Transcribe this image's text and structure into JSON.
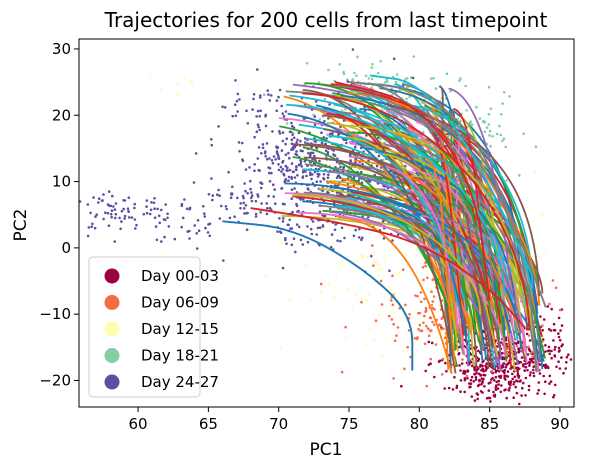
{
  "chart_data": {
    "type": "scatter",
    "title": "Trajectories for 200 cells from last timepoint",
    "xlabel": "PC1",
    "ylabel": "PC2",
    "xlim": [
      55.8,
      91.0
    ],
    "ylim": [
      -24.0,
      31.5
    ],
    "xticks": [
      60,
      65,
      70,
      75,
      80,
      85,
      90
    ],
    "yticks": [
      -20,
      -10,
      0,
      10,
      20,
      30
    ],
    "grid": false,
    "legend_position": "lower-left",
    "series": [
      {
        "name": "Day 00-03",
        "color": "#9e0142",
        "center": [
          85.5,
          -17.0
        ],
        "spread": [
          2.0,
          2.5
        ],
        "count": 550,
        "anchors": [
          [
            86.5,
            -19
          ],
          [
            87.5,
            -17
          ],
          [
            88.5,
            -15
          ],
          [
            85,
            -20
          ],
          [
            84,
            -19
          ],
          [
            88.5,
            -12
          ]
        ]
      },
      {
        "name": "Day 06-09",
        "color": "#f46d43",
        "center": [
          83.0,
          -10.0
        ],
        "spread": [
          3.0,
          5.0
        ],
        "count": 260,
        "anchors": [
          [
            82,
            -8
          ],
          [
            84,
            -12
          ],
          [
            85.5,
            -16
          ],
          [
            79.5,
            -11
          ],
          [
            81,
            -14
          ],
          [
            83,
            -5
          ]
        ]
      },
      {
        "name": "Day 12-15",
        "color": "#fdfdab",
        "center": [
          80.0,
          0.0
        ],
        "spread": [
          4.5,
          7.0
        ],
        "count": 140,
        "anchors": [
          [
            78,
            -2
          ],
          [
            80,
            3
          ],
          [
            76,
            -7
          ],
          [
            83,
            -9
          ],
          [
            77.5,
            -14.5
          ],
          [
            63,
            24
          ]
        ]
      },
      {
        "name": "Day 18-21",
        "color": "#80cfa5",
        "center": [
          79.5,
          18.0
        ],
        "spread": [
          3.5,
          4.0
        ],
        "count": 360,
        "anchors": [
          [
            78,
            22
          ],
          [
            80.5,
            21
          ],
          [
            82,
            18
          ],
          [
            75,
            25
          ],
          [
            83,
            16
          ],
          [
            77,
            24
          ]
        ]
      },
      {
        "name": "Day 24-27",
        "color": "#5e4fa2",
        "center": [
          74.0,
          12.0
        ],
        "spread": [
          3.5,
          5.0
        ],
        "count": 950,
        "anchors": [
          [
            73,
            15
          ],
          [
            71,
            13
          ],
          [
            74,
            9
          ],
          [
            67,
            7
          ],
          [
            63,
            4
          ],
          [
            60,
            6
          ],
          [
            58,
            5
          ],
          [
            72,
            3
          ],
          [
            76,
            6
          ],
          [
            69,
            21
          ]
        ]
      }
    ],
    "trajectory_palette": [
      "#1f77b4",
      "#ff7f0e",
      "#2ca02c",
      "#d62728",
      "#9467bd",
      "#8c564b",
      "#e377c2",
      "#7f7f7f",
      "#bcbd22",
      "#17becf"
    ],
    "trajectories": {
      "count": 200,
      "end_region": {
        "x": [
          82.0,
          89.0
        ],
        "y": [
          -19.0,
          -4.0
        ]
      },
      "example_paths": [
        {
          "x": [
            66,
            71,
            76,
            79.5,
            79.5
          ],
          "y": [
            4,
            3,
            -3,
            -10,
            -18.5
          ],
          "color": "#1f77b4"
        },
        {
          "x": [
            75,
            80,
            84,
            86.5,
            89
          ],
          "y": [
            25,
            24,
            17,
            5,
            -9
          ],
          "color": "#7f7f7f"
        },
        {
          "x": [
            76.5,
            80,
            84,
            88
          ],
          "y": [
            26,
            25,
            14,
            -4
          ],
          "color": "#17becf"
        },
        {
          "x": [
            68,
            74,
            80,
            85,
            87.5
          ],
          "y": [
            6,
            4,
            1,
            -6,
            -12
          ],
          "color": "#d62728"
        },
        {
          "x": [
            74,
            80,
            84,
            85
          ],
          "y": [
            25,
            22,
            9,
            -8
          ],
          "color": "#d62728"
        }
      ]
    }
  },
  "legend": {
    "items": [
      {
        "label": "Day 00-03",
        "color": "#9e0142"
      },
      {
        "label": "Day 06-09",
        "color": "#f46d43"
      },
      {
        "label": "Day 12-15",
        "color": "#fdfdab"
      },
      {
        "label": "Day 18-21",
        "color": "#80cfa5"
      },
      {
        "label": "Day 24-27",
        "color": "#5e4fa2"
      }
    ]
  }
}
